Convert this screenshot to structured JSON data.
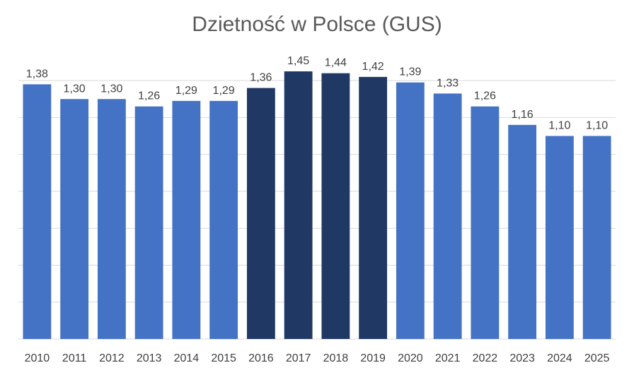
{
  "chart_data": {
    "type": "bar",
    "title": "Dzietność w Polsce (GUS)",
    "xlabel": "",
    "ylabel": "",
    "ylim": [
      0,
      1.5
    ],
    "grid": true,
    "legend": "none",
    "categories": [
      "2010",
      "2011",
      "2012",
      "2013",
      "2014",
      "2015",
      "2016",
      "2017",
      "2018",
      "2019",
      "2020",
      "2021",
      "2022",
      "2023",
      "2024",
      "2025"
    ],
    "values": [
      1.38,
      1.3,
      1.3,
      1.26,
      1.29,
      1.29,
      1.36,
      1.45,
      1.44,
      1.42,
      1.39,
      1.33,
      1.26,
      1.16,
      1.1,
      1.1
    ],
    "value_labels": [
      "1,38",
      "1,30",
      "1,30",
      "1,26",
      "1,29",
      "1,29",
      "1,36",
      "1,45",
      "1,44",
      "1,42",
      "1,39",
      "1,33",
      "1,26",
      "1,16",
      "1,10",
      "1,10"
    ],
    "highlighted_categories": [
      "2016",
      "2017",
      "2018",
      "2019"
    ],
    "colors": {
      "bar": "#4472c4",
      "bar_highlight": "#203864",
      "grid": "#d9d9d9",
      "label": "#404040",
      "title": "#595959"
    }
  }
}
